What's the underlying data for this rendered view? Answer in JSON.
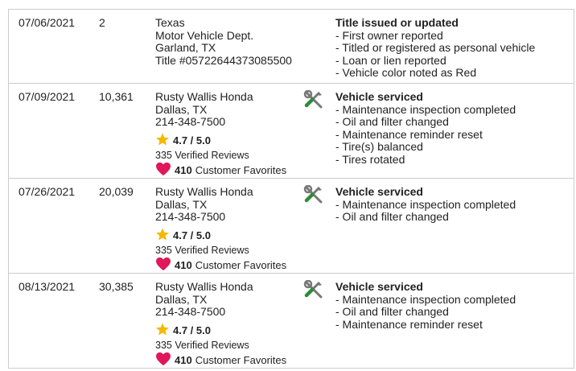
{
  "records": [
    {
      "date": "07/06/2021",
      "odometer": "2",
      "source": [
        "Texas",
        "Motor Vehicle Dept.",
        "Garland, TX",
        "Title #05722644373085500"
      ],
      "title": "Title issued or updated",
      "items": [
        "- First owner reported",
        "- Titled or registered as personal vehicle",
        "- Loan or lien reported",
        "- Vehicle color noted as Red"
      ]
    },
    {
      "date": "07/09/2021",
      "odometer": "10,361",
      "source": [
        "Rusty Wallis Honda",
        "Dallas, TX",
        "214-348-7500"
      ],
      "rating": "4.7 / 5.0",
      "reviews": "335 Verified Reviews",
      "favorites_count": "410",
      "favorites_label": "Customer Favorites",
      "icon": "tools-icon",
      "title": "Vehicle serviced",
      "items": [
        "- Maintenance inspection completed",
        "- Oil and filter changed",
        "- Maintenance reminder reset",
        "- Tire(s) balanced",
        "- Tires rotated"
      ]
    },
    {
      "date": "07/26/2021",
      "odometer": "20,039",
      "source": [
        "Rusty Wallis Honda",
        "Dallas, TX",
        "214-348-7500"
      ],
      "rating": "4.7 / 5.0",
      "reviews": "335 Verified Reviews",
      "favorites_count": "410",
      "favorites_label": "Customer Favorites",
      "icon": "tools-icon",
      "title": "Vehicle serviced",
      "items": [
        "- Maintenance inspection completed",
        "- Oil and filter changed"
      ]
    },
    {
      "date": "08/13/2021",
      "odometer": "30,385",
      "source": [
        "Rusty Wallis Honda",
        "Dallas, TX",
        "214-348-7500"
      ],
      "rating": "4.7 / 5.0",
      "reviews": "335 Verified Reviews",
      "favorites_count": "410",
      "favorites_label": "Customer Favorites",
      "icon": "tools-icon",
      "title": "Vehicle serviced",
      "items": [
        "- Maintenance inspection completed",
        "- Oil and filter changed",
        "- Maintenance reminder reset"
      ]
    }
  ],
  "colors": {
    "star": "#f5b800",
    "heart": "#e0185a",
    "wrench_handle": "#2e8b3a",
    "tool_gray": "#777777",
    "border": "#cccccc"
  }
}
